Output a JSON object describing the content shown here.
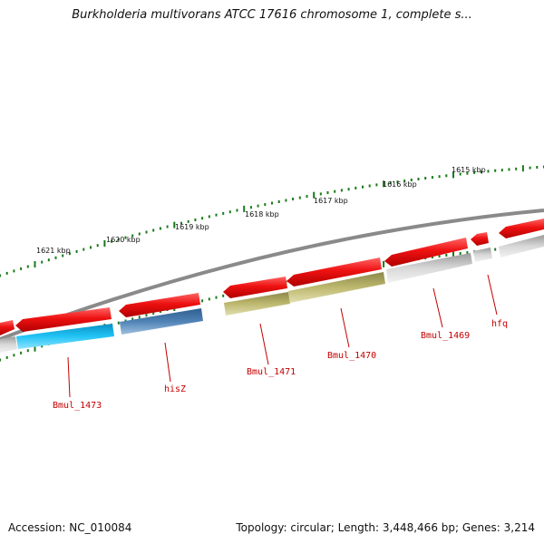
{
  "title": "Burkholderia multivorans ATCC 17616 chromosome 1, complete s...",
  "footer": {
    "accession": "Accession: NC_010084",
    "summary": "Topology: circular; Length: 3,448,466 bp; Genes: 3,214"
  },
  "scale_labels": [
    "1621 kbp",
    "1620 kbp",
    "1619 kbp",
    "1618 kbp",
    "1617 kbp",
    "1616 kbp",
    "1615 kbp"
  ],
  "gene_labels": [
    "Bmul_1473",
    "hisZ",
    "Bmul_1471",
    "Bmul_1470",
    "Bmul_1469",
    "hfq"
  ],
  "colors": {
    "gene_red": "#ee1111",
    "cds_grey": "#bbbbbb",
    "cds_cyan": "#19b7e8",
    "cds_blue": "#4a7cb0",
    "cds_olive": "#b8b46a",
    "tick_green": "#1a7a1a",
    "label_red": "#c40000",
    "backbone": "#8a8a8a"
  }
}
